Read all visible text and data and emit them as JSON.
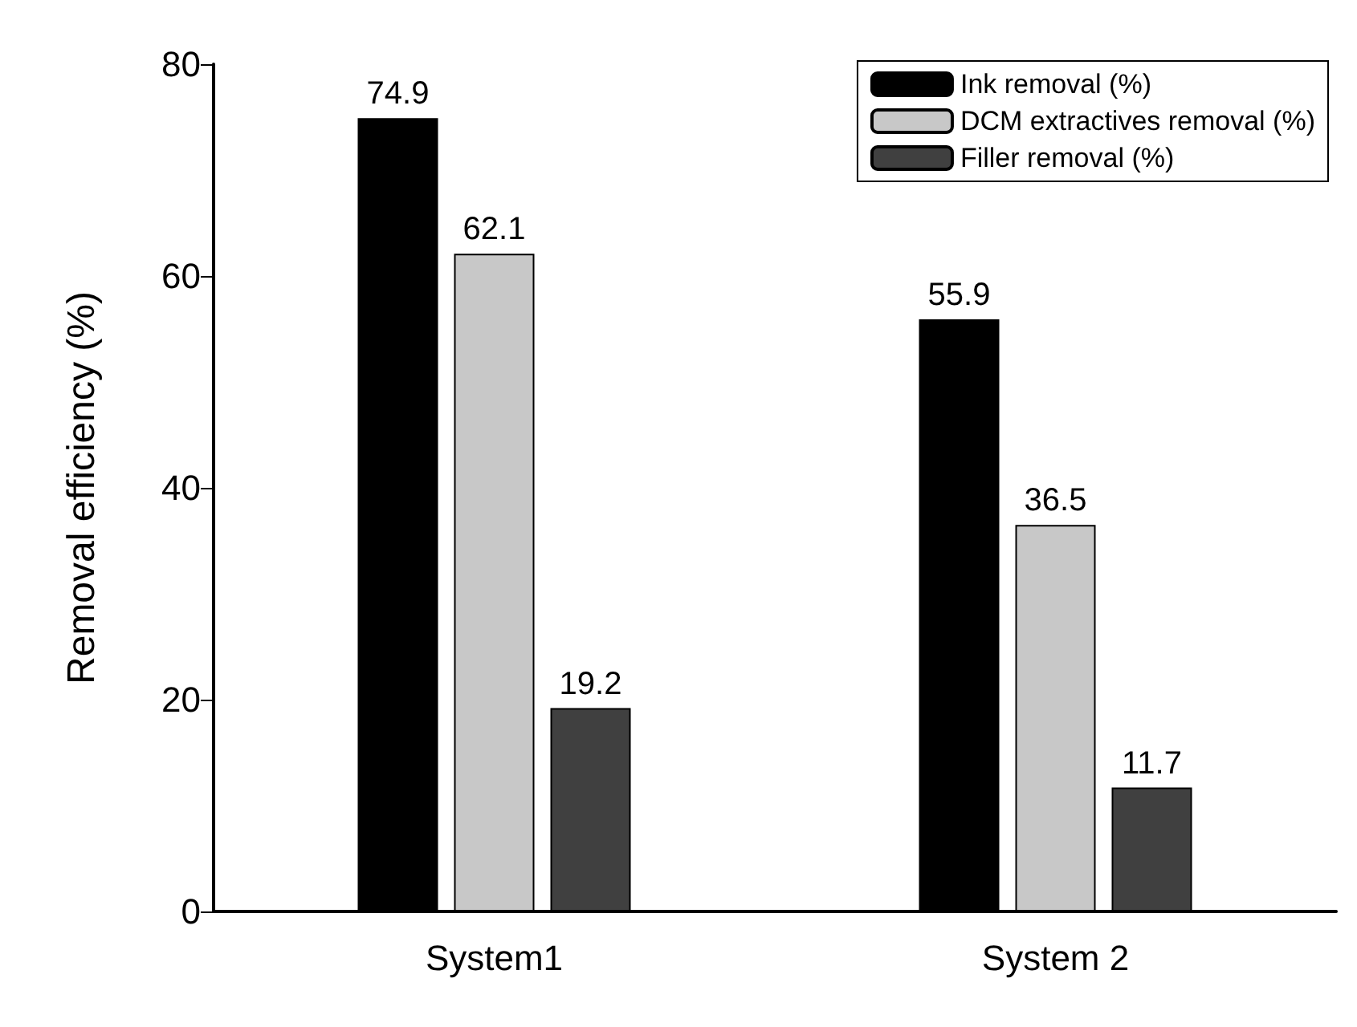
{
  "chart_data": {
    "type": "bar",
    "ylabel": "Removal efficiency (%)",
    "categories": [
      "System1",
      "System 2"
    ],
    "series": [
      {
        "name": "Ink removal (%)",
        "color": "#000000",
        "values": [
          74.9,
          55.9
        ]
      },
      {
        "name": "DCM extractives removal (%)",
        "color": "#c8c8c8",
        "values": [
          62.1,
          36.5
        ]
      },
      {
        "name": "Filler removal (%)",
        "color": "#404040",
        "values": [
          19.2,
          11.7
        ]
      }
    ],
    "ylim": [
      0,
      80
    ],
    "yticks": [
      0,
      20,
      40,
      60,
      80
    ],
    "grid": false,
    "legend": "top right",
    "data_labels": true
  }
}
